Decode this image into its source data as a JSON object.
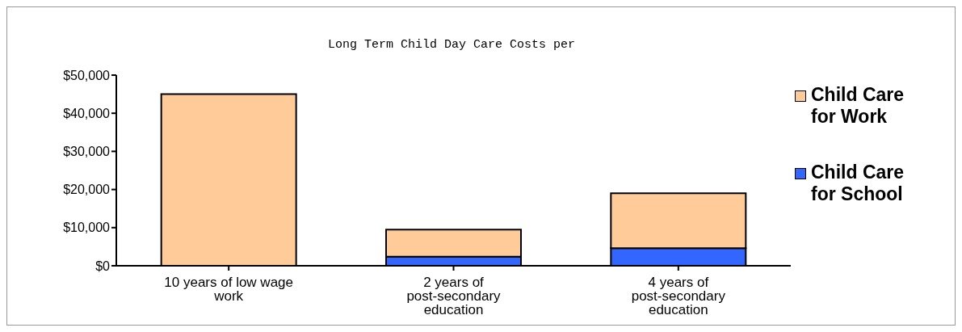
{
  "chart_data": {
    "type": "bar",
    "title": "Long Term Child Day Care Costs per",
    "categories": [
      "10 years of low wage work",
      "2 years of post-secondary education",
      "4 years of post-secondary education"
    ],
    "stacked": true,
    "series": [
      {
        "name": "Child Care for School",
        "color": "#3366ff",
        "values": [
          0,
          2400,
          4600
        ]
      },
      {
        "name": "Child Care for Work",
        "color": "#ffcc99",
        "values": [
          45000,
          7100,
          14400
        ]
      }
    ],
    "ylim": [
      0,
      50000
    ],
    "yticks": [
      {
        "value": 0,
        "label": "$0"
      },
      {
        "value": 10000,
        "label": "$10,000"
      },
      {
        "value": 20000,
        "label": "$20,000"
      },
      {
        "value": 30000,
        "label": "$30,000"
      },
      {
        "value": 40000,
        "label": "$40,000"
      },
      {
        "value": 50000,
        "label": "$50,000"
      }
    ],
    "grid": false,
    "legend": "right"
  }
}
